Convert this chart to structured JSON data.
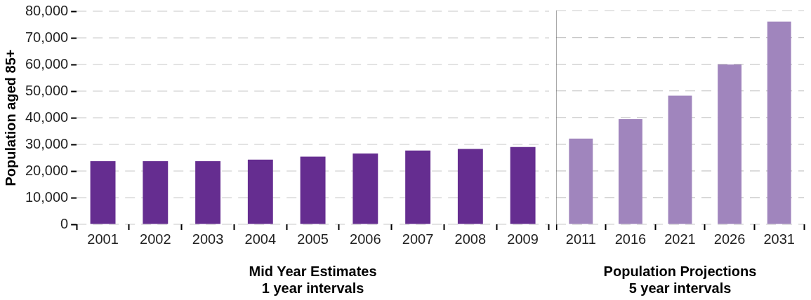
{
  "chart_data": [
    {
      "type": "bar",
      "ylabel": "Population aged 85+",
      "xlabel": "Mid Year Estimates\n1 year intervals",
      "categories": [
        "2001",
        "2002",
        "2003",
        "2004",
        "2005",
        "2006",
        "2007",
        "2008",
        "2009"
      ],
      "values": [
        23700,
        23700,
        23700,
        24300,
        25400,
        26600,
        27700,
        28300,
        29000
      ],
      "color": "#652d90",
      "ylim": [
        0,
        80000
      ],
      "yticks": [
        0,
        {
          "value": 10000,
          "label": "10,000"
        },
        {
          "value": 20000,
          "label": "20,000"
        },
        {
          "value": 30000,
          "label": "30,000"
        },
        {
          "value": 40000,
          "label": "40,000"
        },
        {
          "value": 50000,
          "label": "50,000"
        },
        {
          "value": 60000,
          "label": "60,000"
        },
        {
          "value": 70000,
          "label": "70,000"
        },
        {
          "value": 80000,
          "label": "80,000"
        }
      ],
      "grid": "y"
    },
    {
      "type": "bar",
      "xlabel": "Population Projections\n5 year intervals",
      "categories": [
        "2011",
        "2016",
        "2021",
        "2026",
        "2031"
      ],
      "values": [
        32100,
        39400,
        48200,
        59900,
        76000
      ],
      "color": "#a085bd",
      "ylim": [
        0,
        80000
      ],
      "yticks": [
        0,
        10000,
        20000,
        30000,
        40000,
        50000,
        60000,
        70000,
        80000
      ],
      "grid": "y",
      "tick_labels": "x"
    }
  ]
}
